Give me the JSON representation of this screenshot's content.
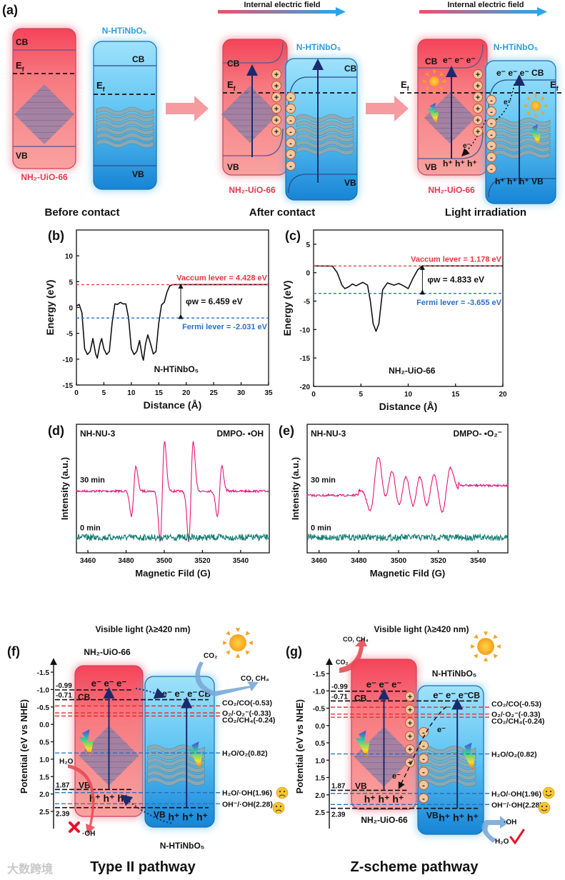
{
  "panel_a": {
    "label": "(a)",
    "field_label": "Internal electric field",
    "before": {
      "caption": "Before contact",
      "mof": "NH₂-UiO-66",
      "semi": "N-HTiNbO₅",
      "cb": "CB",
      "vb": "VB",
      "ef": "E",
      "ef_sub": "f"
    },
    "after": {
      "caption": "After contact",
      "mof": "NH₂-UiO-66",
      "semi": "N-HTiNbO₅",
      "cb": "CB",
      "vb": "VB",
      "ef": "E",
      "ef_sub": "f"
    },
    "light": {
      "caption": "Light irradiation",
      "mof": "NH₂-UiO-66",
      "semi": "N-HTiNbO₅",
      "cb": "CB",
      "vb": "VB",
      "ef": "E",
      "ef_sub": "f",
      "electrons": "e⁻ e⁻ e⁻",
      "holes": "h⁺ h⁺ h⁺",
      "semi_electrons": "e⁻ e⁻ e⁻ CB",
      "semi_holes": "h⁺ h⁺ h⁺ VB",
      "e_transfer": "e⁻"
    },
    "plus": "+",
    "minus": "-"
  },
  "chart_data": [
    {
      "id": "b",
      "label": "(b)",
      "type": "line",
      "xlabel": "Distance (Å)",
      "ylabel": "Energy (eV)",
      "xlim": [
        0,
        35
      ],
      "ylim": [
        -15,
        15
      ],
      "xticks": [
        0,
        5,
        10,
        15,
        20,
        25,
        30,
        35
      ],
      "yticks": [
        -15,
        -10,
        -5,
        0,
        5,
        10
      ],
      "x": [
        0,
        0.5,
        1,
        1.5,
        2,
        2.5,
        3,
        3.5,
        3.8,
        4.3,
        4.6,
        5,
        5.5,
        6,
        6.5,
        7,
        7.5,
        8,
        8.5,
        9,
        9.5,
        10,
        10.5,
        11,
        11.5,
        12,
        12.2,
        12.6,
        13,
        13.5,
        14,
        14.5,
        15,
        15.5,
        16,
        16.5,
        17,
        17.5,
        35
      ],
      "y": [
        0.3,
        0.6,
        -1,
        -8,
        -9.1,
        -8.5,
        -6,
        -9,
        -9.8,
        -7,
        -6,
        -8,
        -9.1,
        -8.5,
        -3,
        0.7,
        0.6,
        1,
        0.7,
        0.7,
        -2,
        -8,
        -9.1,
        -8.5,
        -6.4,
        -9.5,
        -10.2,
        -7,
        -5.3,
        -7,
        -9,
        -8.5,
        -3,
        0.5,
        1,
        3,
        4.2,
        4.43,
        4.43
      ],
      "vacuum": 4.428,
      "fermi": -2.031,
      "phi_x": 19,
      "vacuum_label": "Vaccum lever =  4.428 eV",
      "fermi_label": "Fermi lever = -2.031 eV",
      "phi_label": "φw =  6.459 eV",
      "material": "N-HTiNbO₅"
    },
    {
      "id": "c",
      "label": "(c)",
      "type": "line",
      "xlabel": "Distance (Å)",
      "ylabel": "Energy (eV)",
      "xlim": [
        0,
        20
      ],
      "ylim": [
        -20,
        7.5
      ],
      "xticks": [
        0,
        5,
        10,
        15,
        20
      ],
      "yticks": [
        -20,
        -15,
        -10,
        -5,
        0,
        5
      ],
      "x": [
        0,
        2,
        2.5,
        3,
        3.3,
        3.7,
        4.1,
        4.5,
        5.2,
        5.7,
        6,
        6.3,
        6.6,
        6.9,
        7.3,
        7.8,
        8.5,
        9,
        9.5,
        10,
        10.5,
        11,
        11.5,
        20
      ],
      "y": [
        1.18,
        1.15,
        0,
        -2.2,
        -2.8,
        -2.5,
        -2,
        -2.3,
        -1.7,
        -2.2,
        -5,
        -9,
        -10.3,
        -9,
        -3,
        -1.8,
        -2.2,
        -1.9,
        -2.3,
        -2.8,
        -1,
        0.5,
        1.18,
        1.18
      ],
      "vacuum": 1.178,
      "fermi": -3.655,
      "phi_x": 11.5,
      "vacuum_label": "Vaccum lever =  1.178 eV",
      "fermi_label": "Fermi lever = -3.655 eV",
      "phi_label": "φw =  4.833 eV",
      "material": "NH₂-UiO-66"
    },
    {
      "id": "d",
      "label": "(d)",
      "type": "line",
      "xlabel": "Magnetic Fild (G)",
      "ylabel": "Intensity (a.u.)",
      "xlim": [
        3454,
        3555
      ],
      "xticks": [
        3460,
        3480,
        3500,
        3520,
        3540
      ],
      "sample": "NH-NU-3",
      "probe": "DMPO- •OH",
      "series": [
        {
          "name": "30 min",
          "color": "#e8157a",
          "peaks": [
            3484,
            3499,
            3514,
            3529
          ],
          "amplitudes": [
            1,
            2,
            2,
            1
          ],
          "width": 1.2
        },
        {
          "name": "0 min",
          "color": "#137d72",
          "peaks": [],
          "amplitudes": [],
          "width": 1
        }
      ]
    },
    {
      "id": "e",
      "label": "(e)",
      "type": "line",
      "xlabel": "Magnetic Fild (G)",
      "ylabel": "Intensity (a.u.)",
      "xlim": [
        3454,
        3555
      ],
      "xticks": [
        3460,
        3480,
        3500,
        3520,
        3540
      ],
      "sample": "NH-NU-3",
      "probe": "DMPO- •O₂⁻",
      "series": [
        {
          "name": "30 min",
          "color": "#e8157a",
          "peaks": [
            3488,
            3495,
            3502,
            3509,
            3516,
            3524
          ],
          "amplitudes": [
            1.4,
            1.1,
            1.0,
            1.0,
            1.0,
            1.2
          ],
          "width": 2.2
        },
        {
          "name": "0 min",
          "color": "#137d72",
          "peaks": [],
          "amplitudes": [],
          "width": 1
        }
      ]
    }
  ],
  "panel_f": {
    "label": "(f)",
    "light": "Visible light (λ≥420 nm)",
    "caption": "Type II  pathway",
    "ylabel": "Potential (eV vs NHE)",
    "yticks": [
      "-1.5",
      "-1.0",
      "-0.5",
      "0.0",
      "0.5",
      "1.0",
      "1.5",
      "2.0",
      "2.5"
    ],
    "mof": "NH₂-UiO-66",
    "semi": "N-HTiNbO₅",
    "mof_cb": -0.99,
    "mof_vb": 1.87,
    "semi_cb": -0.71,
    "semi_vb": 2.39,
    "mof_cb_label": "-0.99",
    "semi_cb_label": "-0.71",
    "mof_vb_label": "1.87",
    "semi_vb_label": "2.39",
    "cb": "CB",
    "vb": "VB",
    "electrons": "e⁻  e⁻  e⁻",
    "holes": "h⁺ h⁺ h⁺",
    "co2": "CO₂",
    "products": "CO, CH₄",
    "h2o": "H₂O",
    "oh": "·OH",
    "result": "fail"
  },
  "panel_g": {
    "label": "(g)",
    "light": "Visible light (λ≥420 nm)",
    "caption": "Z-scheme pathway",
    "ylabel": "Potential (eV vs NHE)",
    "yticks": [
      "-1.5",
      "-1.0",
      "-0.5",
      "0.0",
      "0.5",
      "1.0",
      "1.5",
      "2.0",
      "2.5"
    ],
    "mof": "NH₂-UiO-66",
    "semi": "N-HTiNbO₅",
    "mof_cb": -0.99,
    "mof_vb": 1.87,
    "semi_cb": -0.71,
    "semi_vb": 2.39,
    "mof_cb_label": "-0.99",
    "semi_cb_label": "-0.71",
    "mof_vb_label": "1.87",
    "semi_vb_label": "2.39",
    "cb": "CB",
    "vb": "VB",
    "electrons": "e⁻  e⁻  e⁻",
    "holes": "h⁺ h⁺ h⁺",
    "e_transfer": "e⁻",
    "co2": "CO₂",
    "products": "CO, CH₄",
    "h2o": "H₂O",
    "oh": "·OH",
    "result": "success"
  },
  "redox_levels": [
    {
      "label": "CO₂/CO(-0.53)",
      "value": -0.53,
      "color": "#e8262a"
    },
    {
      "label": "O₂/·O₂⁻(-0.33)",
      "value": -0.33,
      "color": "#e8262a"
    },
    {
      "label": "CO₂/CH₄(-0.24)",
      "value": -0.24,
      "color": "#e8262a"
    },
    {
      "label": "H₂O/O₂(0.82)",
      "value": 0.82,
      "color": "#1f6fc4"
    },
    {
      "label": "H₂O/·OH(1.96)",
      "value": 1.96,
      "color": "#1f6fc4"
    },
    {
      "label": "OH⁻/·OH(2.28)",
      "value": 2.28,
      "color": "#1f6fc4"
    }
  ],
  "colors": {
    "mof": "#f5636b",
    "semi": "#34a9e8",
    "navy": "#1b2a6b",
    "vacuum": "#e8373f",
    "fermi": "#2a6fcc"
  },
  "watermark": "大数跨境"
}
